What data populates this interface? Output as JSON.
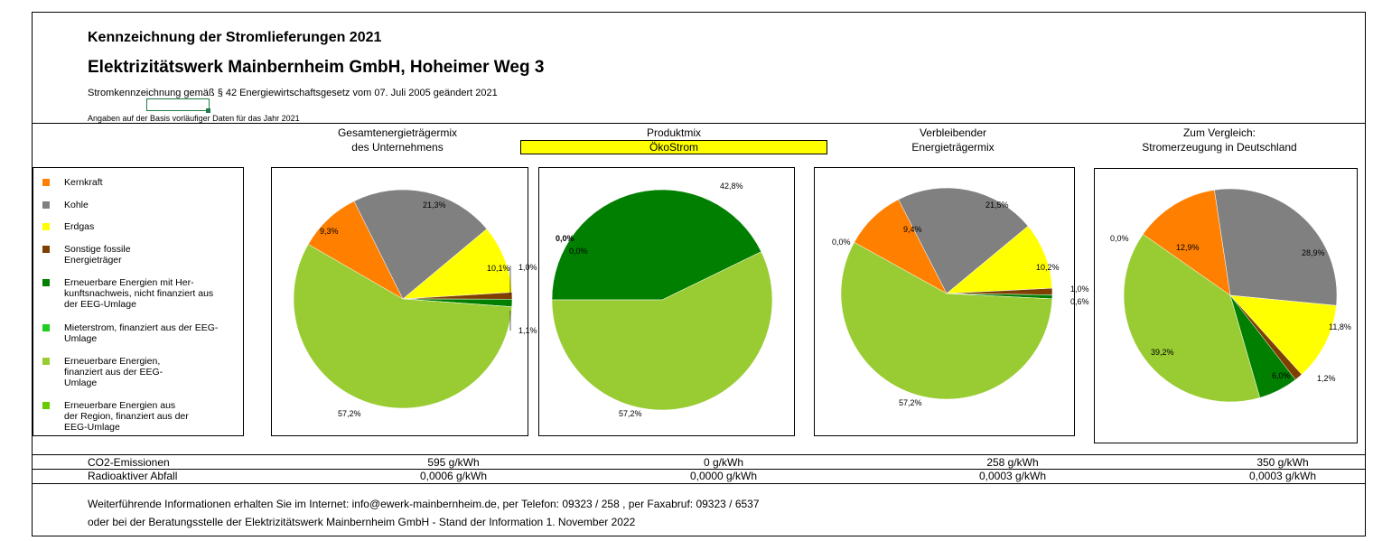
{
  "header": {
    "title": "Kennzeichnung der Stromlieferungen 2021",
    "company": "Elektrizitätswerk Mainbernheim GmbH, Hoheimer Weg 3",
    "law_note": "Stromkennzeichnung gemäß § 42 Energiewirtschaftsgesetz vom 07. Juli 2005 geändert 2021",
    "data_basis": "Angaben auf der Basis vorläufiger Daten für das Jahr 2021"
  },
  "columns": [
    {
      "line1": "Gesamtenergieträgermix",
      "line2": "des Unternehmens"
    },
    {
      "line1": "Produktmix",
      "line2": "ÖkoStrom"
    },
    {
      "line1": "Verbleibender",
      "line2": "Energieträgermix"
    },
    {
      "line1": "Zum Vergleich:",
      "line2": "Stromerzeugung in Deutschland"
    }
  ],
  "legend": [
    {
      "label": "Kernkraft",
      "color": "#ff7f00"
    },
    {
      "label": "Kohle",
      "color": "#808080"
    },
    {
      "label": "Erdgas",
      "color": "#ffff00"
    },
    {
      "label": "Sonstige fossile Energieträger",
      "color": "#7f3f00"
    },
    {
      "label": "Erneuerbare Energien mit Her-kunftsnachweis, nicht finanziert aus der EEG-Umlage",
      "color": "#007f00"
    },
    {
      "label": "Mieterstrom, finanziert aus der EEG-Umlage",
      "color": "#1fcc1f"
    },
    {
      "label": "Erneuerbare Energien, finanziert aus der EEG-Umlage",
      "color": "#99cc33"
    },
    {
      "label": "Erneuerbare Energien aus der Region, finanziert aus der EEG-Umlage",
      "color": "#66cc00"
    }
  ],
  "chart_data": [
    {
      "type": "pie",
      "title": "Gesamtenergieträgermix des Unternehmens",
      "categories": [
        "Kernkraft",
        "Kohle",
        "Erdgas",
        "Sonstige fossile Energieträger",
        "Erneuerbare Energien mit Herkunftsnachweis",
        "Erneuerbare Energien, finanziert aus der EEG-Umlage"
      ],
      "values": [
        9.3,
        21.3,
        10.1,
        1.0,
        1.1,
        57.2
      ],
      "labels": [
        "9,3%",
        "21,3%",
        "10,1%",
        "1,0%",
        "1,1%",
        "57,2%"
      ]
    },
    {
      "type": "pie",
      "title": "Produktmix ÖkoStrom",
      "categories": [
        "Kernkraft",
        "Kohle",
        "Erneuerbare Energien mit Herkunftsnachweis",
        "Erneuerbare Energien, finanziert aus der EEG-Umlage"
      ],
      "values": [
        0.0,
        0.0,
        42.8,
        57.2
      ],
      "labels": [
        "0,0%",
        "0,0%",
        "42,8%",
        "57,2%"
      ]
    },
    {
      "type": "pie",
      "title": "Verbleibender Energieträgermix",
      "categories": [
        "Kernkraft",
        "Kohle",
        "Erdgas",
        "Sonstige fossile Energieträger",
        "Erneuerbare Energien mit Herkunftsnachweis",
        "Erneuerbare Energien, finanziert aus der EEG-Umlage",
        "Sonstige"
      ],
      "values": [
        9.4,
        21.5,
        10.2,
        1.0,
        0.6,
        57.2,
        0.0
      ],
      "labels": [
        "9,4%",
        "21,5%",
        "10,2%",
        "1,0%",
        "0,6%",
        "57,2%",
        "0,0%"
      ]
    },
    {
      "type": "pie",
      "title": "Stromerzeugung in Deutschland",
      "categories": [
        "Kernkraft",
        "Kohle",
        "Erdgas",
        "Sonstige fossile Energieträger",
        "Erneuerbare Energien mit Herkunftsnachweis",
        "Erneuerbare Energien, finanziert aus der EEG-Umlage",
        "Sonstige"
      ],
      "values": [
        12.9,
        28.9,
        11.8,
        1.2,
        6.0,
        39.2,
        0.0
      ],
      "labels": [
        "12,9%",
        "28,9%",
        "11,8%",
        "1,2%",
        "6,0%",
        "39,2%",
        "0,0%"
      ]
    }
  ],
  "pie_colors": [
    "#ff7f00",
    "#808080",
    "#ffff00",
    "#7f3f00",
    "#007f00",
    "#99cc33",
    "#66cc00"
  ],
  "table": {
    "co2_label": "CO2-Emissionen",
    "co2": [
      "595 g/kWh",
      "0 g/kWh",
      "258 g/kWh",
      "350 g/kWh"
    ],
    "waste_label": "Radioaktiver Abfall",
    "waste": [
      "0,0006 g/kWh",
      "0,0000 g/kWh",
      "0,0003 g/kWh",
      "0,0003 g/kWh"
    ]
  },
  "footer": {
    "line1": "Weiterführende Informationen erhalten Sie im Internet: info@ewerk-mainbernheim.de, per Telefon: 09323 / 258 , per Faxabruf: 09323 / 6537",
    "line2": "oder bei der Beratungsstelle der Elektrizitätswerk Mainbernheim GmbH - Stand der Information 1. November 2022"
  }
}
